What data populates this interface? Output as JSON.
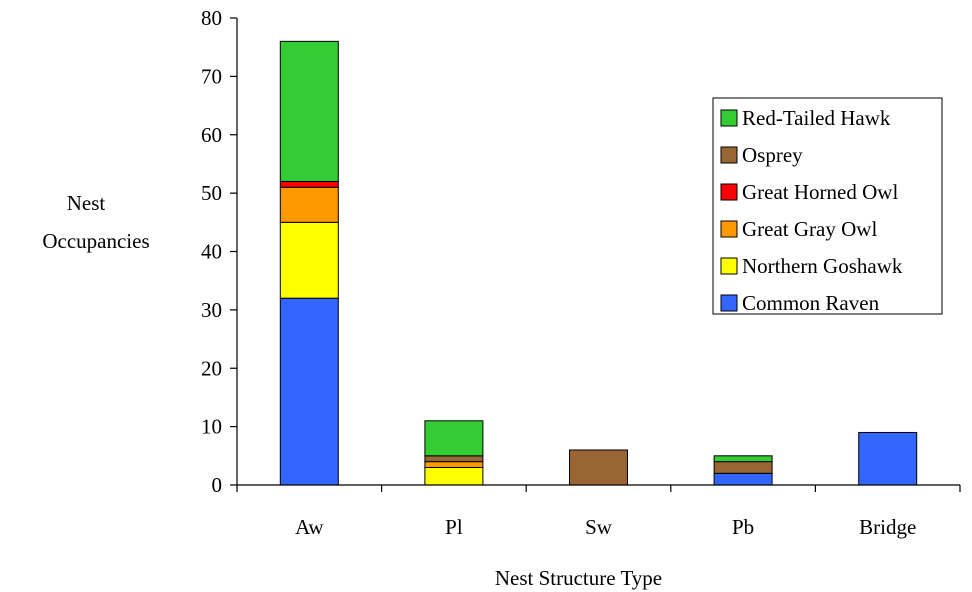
{
  "chart_data": {
    "type": "bar",
    "stacked": true,
    "title": "",
    "xlabel": "Nest Structure Type",
    "ylabel": [
      "Nest",
      "Occupancies"
    ],
    "ylim": [
      0,
      80
    ],
    "yticks": [
      0,
      10,
      20,
      30,
      40,
      50,
      60,
      70,
      80
    ],
    "grid": false,
    "legend_position": "right",
    "categories": [
      "Aw",
      "Pl",
      "Sw",
      "Pb",
      "Bridge"
    ],
    "series": [
      {
        "name": "Common Raven",
        "color": "#3366ff",
        "values": [
          32,
          0,
          0,
          2,
          9
        ]
      },
      {
        "name": "Northern Goshawk",
        "color": "#ffff00",
        "values": [
          13,
          3,
          0,
          0,
          0
        ]
      },
      {
        "name": "Great Gray Owl",
        "color": "#ff9900",
        "values": [
          6,
          1,
          0,
          0,
          0
        ]
      },
      {
        "name": "Great Horned Owl",
        "color": "#ff0000",
        "values": [
          1,
          0,
          0,
          0,
          0
        ]
      },
      {
        "name": "Osprey",
        "color": "#996633",
        "values": [
          0,
          1,
          6,
          2,
          0
        ]
      },
      {
        "name": "Red-Tailed Hawk",
        "color": "#33cc33",
        "values": [
          24,
          6,
          0,
          1,
          0
        ]
      }
    ],
    "legend_order": [
      "Red-Tailed Hawk",
      "Osprey",
      "Great Horned Owl",
      "Great Gray Owl",
      "Northern Goshawk",
      "Common Raven"
    ]
  }
}
